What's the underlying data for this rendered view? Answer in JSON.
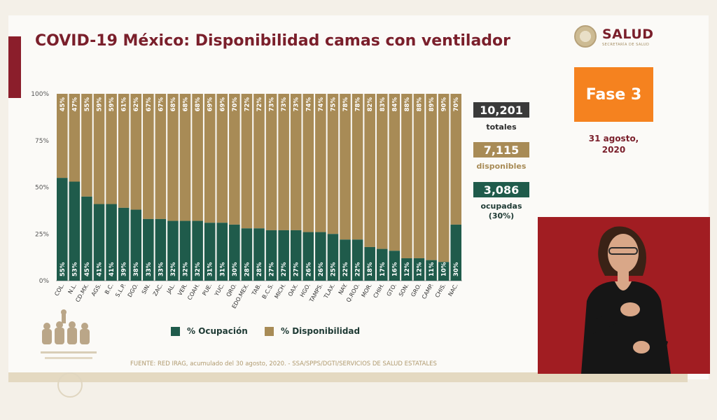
{
  "title": "COVID-19 México: Disponibilidad camas con ventilador",
  "logo": {
    "brand": "SALUD",
    "sub": "SECRETARÍA DE SALUD"
  },
  "fase_label": "Fase 3",
  "date": {
    "line1": "31 agosto,",
    "line2": "2020"
  },
  "stats": {
    "total_value": "10,201",
    "total_label": "totales",
    "available_value": "7,115",
    "available_label": "disponibles",
    "occupied_value": "3,086",
    "occupied_label": "ocupadas",
    "occupied_pct": "(30%)"
  },
  "legend": {
    "occupied": "% Ocupación",
    "available": "% Disponibilidad"
  },
  "source": "FUENTE: RED IRAG, acumulado del 30 agosto, 2020. - SSA/SPPS/DGTI/SERVICIOS DE SALUD ESTATALES",
  "colors": {
    "occupied": "#1f5b4b",
    "available": "#a88b56",
    "title": "#7a1f2b",
    "fase": "#f5821f",
    "stat_total": "#3a3a3a"
  },
  "chart_data": {
    "type": "bar",
    "stacked": true,
    "percent": true,
    "yticks": [
      "0%",
      "25%",
      "50%",
      "75%",
      "100%"
    ],
    "ylim": [
      0,
      100
    ],
    "categories": [
      "COL.",
      "N.L.",
      "CD.MX.",
      "AGS.",
      "B.C.",
      "S.L.P.",
      "DGO.",
      "SIN.",
      "ZAC.",
      "JAL.",
      "VER.",
      "COAH.",
      "PUE.",
      "YUC.",
      "QRO.",
      "EDO.MEX.",
      "TAB.",
      "B.C.S.",
      "MICH.",
      "OAX.",
      "HGO.",
      "TAMPS.",
      "TLAX.",
      "NAY.",
      "Q.ROO.",
      "MOR.",
      "CHIH.",
      "GTO.",
      "SON.",
      "GRO.",
      "CAMP.",
      "CHIS.",
      "NAC."
    ],
    "series": [
      {
        "name": "% Ocupación",
        "values": [
          55,
          53,
          45,
          41,
          41,
          39,
          38,
          33,
          33,
          32,
          32,
          32,
          31,
          31,
          30,
          28,
          28,
          27,
          27,
          27,
          26,
          26,
          25,
          22,
          22,
          18,
          17,
          16,
          12,
          12,
          11,
          10,
          30
        ]
      },
      {
        "name": "% Disponibilidad",
        "values": [
          45,
          47,
          55,
          59,
          59,
          61,
          62,
          67,
          67,
          68,
          68,
          68,
          69,
          69,
          70,
          72,
          72,
          73,
          73,
          73,
          74,
          74,
          75,
          78,
          78,
          82,
          83,
          84,
          88,
          88,
          89,
          90,
          70
        ]
      }
    ],
    "legend": "bottom",
    "grid": false
  }
}
